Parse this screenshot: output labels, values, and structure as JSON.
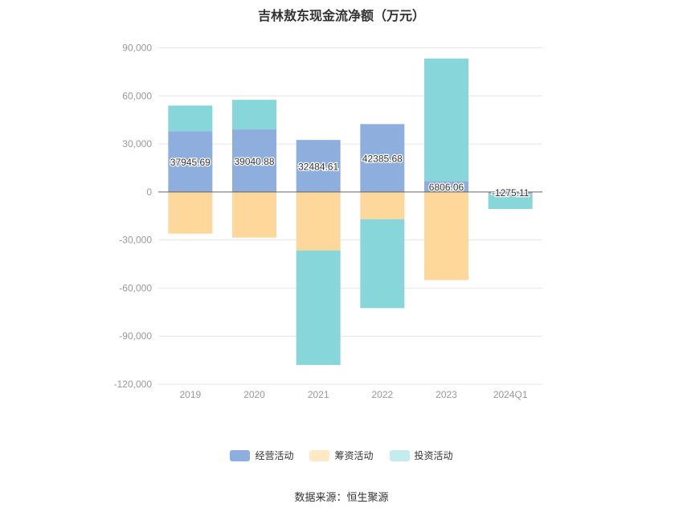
{
  "chart_data": {
    "type": "bar",
    "title": "吉林敖东现金流净额（万元）",
    "categories": [
      "2019",
      "2020",
      "2021",
      "2022",
      "2023",
      "2024Q1"
    ],
    "series": [
      {
        "name": "经营活动",
        "values": [
          37945.69,
          39040.88,
          32484.61,
          42385.68,
          6806.06,
          -1275.11
        ],
        "labels": [
          "37945.69",
          "39040.88",
          "32484.61",
          "42385.68",
          "6806.06",
          "-1275.11"
        ]
      },
      {
        "name": "筹资活动",
        "values": [
          -26000,
          -28500,
          -36500,
          -17000,
          -55000,
          -300
        ]
      },
      {
        "name": "投资活动",
        "values": [
          16000,
          18500,
          -71500,
          -55500,
          76500,
          -9000
        ]
      }
    ],
    "ylim": [
      -120000,
      90000
    ],
    "yticks": [
      90000,
      60000,
      30000,
      0,
      -30000,
      -60000,
      -90000,
      -120000
    ],
    "ytick_labels": [
      "90,000",
      "60,000",
      "30,000",
      "0",
      "-30,000",
      "-60,000",
      "-90,000",
      "-120,000"
    ],
    "stacked": true,
    "grid": true,
    "legend": "bottom"
  },
  "colors": {
    "经营活动": "#8eaedd",
    "筹资活动": "#fed89b",
    "投资活动": "#86d6da"
  },
  "legend_colors": {
    "经营活动": "#8eaedd",
    "筹资活动": "#fde9c5",
    "投资活动": "#c3ecee"
  },
  "source": "数据来源：恒生聚源"
}
